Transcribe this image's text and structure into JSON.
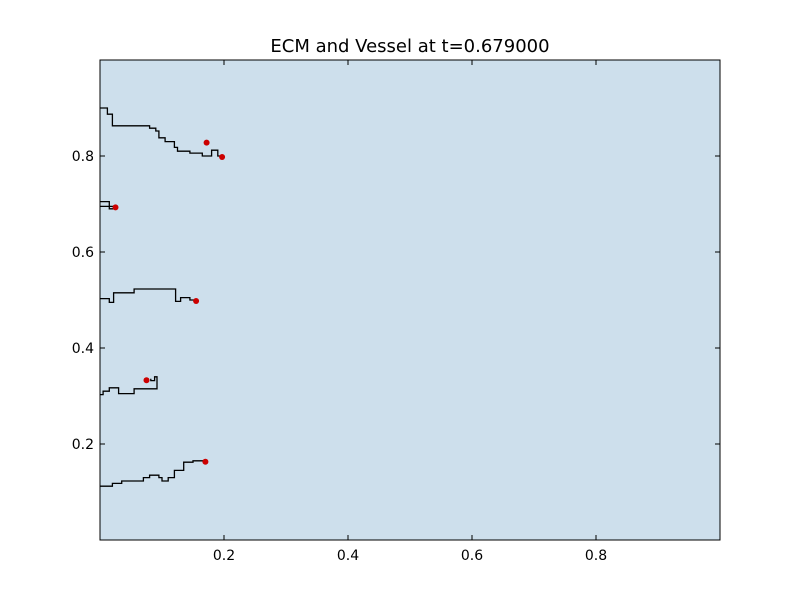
{
  "chart_data": {
    "type": "line",
    "title": "ECM and Vessel at t=0.679000",
    "xlabel": "",
    "ylabel": "",
    "xlim": [
      0.0,
      1.0
    ],
    "ylim": [
      0.0,
      1.0
    ],
    "grid": false,
    "background_color": "#cddfec",
    "vessel_color": "#000000",
    "tip_color": "#cc0000",
    "x_ticks": [
      0.2,
      0.4,
      0.6,
      0.8
    ],
    "y_ticks": [
      0.2,
      0.4,
      0.6,
      0.8
    ],
    "x_tick_labels": [
      "0.2",
      "0.4",
      "0.6",
      "0.8"
    ],
    "y_tick_labels": [
      "0.2",
      "0.4",
      "0.6",
      "0.8"
    ],
    "vessels": [
      {
        "points": [
          [
            0.0,
            0.9
          ],
          [
            0.012,
            0.9
          ],
          [
            0.012,
            0.887
          ],
          [
            0.02,
            0.887
          ],
          [
            0.02,
            0.863
          ],
          [
            0.08,
            0.863
          ],
          [
            0.08,
            0.858
          ],
          [
            0.09,
            0.858
          ],
          [
            0.09,
            0.852
          ],
          [
            0.095,
            0.852
          ],
          [
            0.095,
            0.838
          ],
          [
            0.105,
            0.838
          ],
          [
            0.105,
            0.83
          ],
          [
            0.12,
            0.83
          ],
          [
            0.12,
            0.818
          ],
          [
            0.125,
            0.818
          ],
          [
            0.125,
            0.81
          ],
          [
            0.145,
            0.81
          ],
          [
            0.145,
            0.806
          ],
          [
            0.165,
            0.806
          ],
          [
            0.165,
            0.8
          ],
          [
            0.18,
            0.8
          ],
          [
            0.18,
            0.812
          ],
          [
            0.19,
            0.812
          ],
          [
            0.19,
            0.8
          ],
          [
            0.197,
            0.8
          ]
        ]
      },
      {
        "points": [
          [
            0.0,
            0.705
          ],
          [
            0.015,
            0.705
          ],
          [
            0.015,
            0.69
          ],
          [
            0.025,
            0.69
          ],
          [
            0.025,
            0.695
          ],
          [
            0.0,
            0.695
          ]
        ]
      },
      {
        "points": [
          [
            0.0,
            0.503
          ],
          [
            0.015,
            0.503
          ],
          [
            0.015,
            0.495
          ],
          [
            0.022,
            0.495
          ],
          [
            0.022,
            0.515
          ],
          [
            0.055,
            0.515
          ],
          [
            0.055,
            0.523
          ],
          [
            0.122,
            0.523
          ],
          [
            0.122,
            0.497
          ],
          [
            0.13,
            0.497
          ],
          [
            0.13,
            0.505
          ],
          [
            0.145,
            0.505
          ],
          [
            0.145,
            0.5
          ],
          [
            0.155,
            0.5
          ]
        ]
      },
      {
        "points": [
          [
            0.0,
            0.303
          ],
          [
            0.005,
            0.303
          ],
          [
            0.005,
            0.31
          ],
          [
            0.015,
            0.31
          ],
          [
            0.015,
            0.317
          ],
          [
            0.03,
            0.317
          ],
          [
            0.03,
            0.305
          ],
          [
            0.055,
            0.305
          ],
          [
            0.055,
            0.315
          ],
          [
            0.092,
            0.315
          ],
          [
            0.092,
            0.34
          ],
          [
            0.088,
            0.34
          ],
          [
            0.088,
            0.332
          ],
          [
            0.082,
            0.332
          ],
          [
            0.082,
            0.336
          ]
        ]
      },
      {
        "points": [
          [
            0.0,
            0.112
          ],
          [
            0.02,
            0.112
          ],
          [
            0.02,
            0.118
          ],
          [
            0.035,
            0.118
          ],
          [
            0.035,
            0.123
          ],
          [
            0.07,
            0.123
          ],
          [
            0.07,
            0.13
          ],
          [
            0.08,
            0.13
          ],
          [
            0.08,
            0.135
          ],
          [
            0.095,
            0.135
          ],
          [
            0.095,
            0.13
          ],
          [
            0.1,
            0.13
          ],
          [
            0.1,
            0.123
          ],
          [
            0.11,
            0.123
          ],
          [
            0.11,
            0.13
          ],
          [
            0.12,
            0.13
          ],
          [
            0.12,
            0.145
          ],
          [
            0.135,
            0.145
          ],
          [
            0.135,
            0.162
          ],
          [
            0.15,
            0.162
          ],
          [
            0.15,
            0.165
          ],
          [
            0.17,
            0.165
          ]
        ]
      }
    ],
    "tips": [
      {
        "x": 0.172,
        "y": 0.828
      },
      {
        "x": 0.197,
        "y": 0.798
      },
      {
        "x": 0.025,
        "y": 0.693
      },
      {
        "x": 0.155,
        "y": 0.498
      },
      {
        "x": 0.075,
        "y": 0.333
      },
      {
        "x": 0.17,
        "y": 0.163
      }
    ]
  }
}
